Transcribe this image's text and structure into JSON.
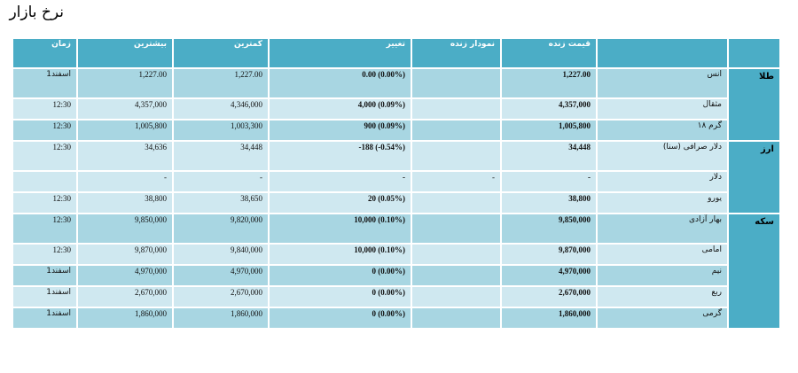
{
  "title": "نرخ بازار",
  "headers": {
    "time": "زمان",
    "high": "بیشترین",
    "low": "کمترین",
    "change": "تغییر",
    "chart": "نمودار زنده",
    "live": "قیمت زنده",
    "name": "",
    "category": ""
  },
  "categories": {
    "gold": "طلا",
    "currency": "ارز",
    "coin": "سکه"
  },
  "rows": [
    {
      "time": "1اسفند",
      "high": "1,227.00",
      "low": "1,227.00",
      "change": "0.00 (0.00%)",
      "chart": "",
      "live": "1,227.00",
      "name": "انس"
    },
    {
      "time": "12:30",
      "high": "4,357,000",
      "low": "4,346,000",
      "change": "4,000 (0.09%)",
      "chart": "",
      "live": "4,357,000",
      "name": "مثقال"
    },
    {
      "time": "12:30",
      "high": "1,005,800",
      "low": "1,003,300",
      "change": "900 (0.09%)",
      "chart": "",
      "live": "1,005,800",
      "name": "گرم ۱۸"
    },
    {
      "time": "12:30",
      "high": "34,636",
      "low": "34,448",
      "change": "-188 (-0.54%)",
      "chart": "",
      "live": "34,448",
      "name": "دلار صرافی (سنا)"
    },
    {
      "time": "",
      "high": "-",
      "low": "-",
      "change": "-",
      "chart": "-",
      "live": "-",
      "name": "دلار"
    },
    {
      "time": "12:30",
      "high": "38,800",
      "low": "38,650",
      "change": "20 (0.05%)",
      "chart": "",
      "live": "38,800",
      "name": "یورو"
    },
    {
      "time": "12:30",
      "high": "9,850,000",
      "low": "9,820,000",
      "change": "10,000 (0.10%)",
      "chart": "",
      "live": "9,850,000",
      "name": "بهار آزادی"
    },
    {
      "time": "12:30",
      "high": "9,870,000",
      "low": "9,840,000",
      "change": "10,000 (0.10%)",
      "chart": "",
      "live": "9,870,000",
      "name": "امامی"
    },
    {
      "time": "1اسفند",
      "high": "4,970,000",
      "low": "4,970,000",
      "change": "0 (0.00%)",
      "chart": "",
      "live": "4,970,000",
      "name": "نیم"
    },
    {
      "time": "1اسفند",
      "high": "2,670,000",
      "low": "2,670,000",
      "change": "0 (0.00%)",
      "chart": "",
      "live": "2,670,000",
      "name": "ربع"
    },
    {
      "time": "1اسفند",
      "high": "1,860,000",
      "low": "1,860,000",
      "change": "0 (0.00%)",
      "chart": "",
      "live": "1,860,000",
      "name": "گرمی"
    }
  ],
  "colors": {
    "header": "#4badc6",
    "row_dark": "#a8d6e2",
    "row_light": "#cfe8f0",
    "border": "#ffffff"
  }
}
